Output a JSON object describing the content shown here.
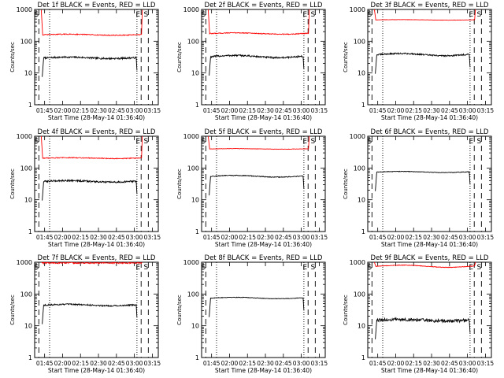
{
  "chart_data": [
    {
      "type": "line",
      "title": "Det 1f BLACK = Events, RED = LLD",
      "xlabel": "Start Time (28-May-14 01:36:40)",
      "ylabel": "Counts/sec",
      "yscale": "log",
      "ylim": [
        1,
        1000
      ],
      "xticks": [
        "01:45",
        "02:00",
        "02:15",
        "02:30",
        "02:45",
        "03:00",
        "03:15"
      ],
      "yticks": [
        "1",
        "10",
        "100",
        "1000"
      ],
      "markers": [
        "S",
        "E",
        "S"
      ],
      "series": [
        {
          "name": "Events",
          "color": "#000000",
          "baseline": 30,
          "amp": 0.05,
          "noise": 0.06
        },
        {
          "name": "LLD",
          "color": "#ff0000",
          "baseline": 160,
          "amp": 0.04,
          "noise": 0.03
        }
      ]
    },
    {
      "type": "line",
      "title": "Det 2f BLACK = Events, RED = LLD",
      "xlabel": "Start Time (28-May-14 01:36:40)",
      "ylabel": "Counts/sec",
      "yscale": "log",
      "ylim": [
        1,
        1000
      ],
      "xticks": [
        "01:45",
        "02:00",
        "02:15",
        "02:30",
        "02:45",
        "03:00",
        "03:15"
      ],
      "yticks": [
        "1",
        "10",
        "100",
        "1000"
      ],
      "markers": [
        "S",
        "E",
        "S"
      ],
      "series": [
        {
          "name": "Events",
          "color": "#000000",
          "baseline": 33,
          "amp": 0.08,
          "noise": 0.06
        },
        {
          "name": "LLD",
          "color": "#ff0000",
          "baseline": 175,
          "amp": 0.05,
          "noise": 0.03
        }
      ]
    },
    {
      "type": "line",
      "title": "Det 3f BLACK = Events, RED = LLD",
      "xlabel": "Start Time (28-May-14 01:36:40)",
      "ylabel": "Counts/sec",
      "yscale": "log",
      "ylim": [
        1,
        1000
      ],
      "xticks": [
        "01:45",
        "02:00",
        "02:15",
        "02:30",
        "02:45",
        "03:00",
        "03:15"
      ],
      "yticks": [
        "1",
        "10",
        "100",
        "1000"
      ],
      "markers": [
        "S",
        "E",
        "S"
      ],
      "series": [
        {
          "name": "Events",
          "color": "#000000",
          "baseline": 38,
          "amp": 0.08,
          "noise": 0.05
        },
        {
          "name": "LLD",
          "color": "#ff0000",
          "baseline": 470,
          "amp": 0.02,
          "noise": 0.01
        }
      ]
    },
    {
      "type": "line",
      "title": "Det 4f BLACK = Events, RED = LLD",
      "xlabel": "Start Time (28-May-14 01:36:40)",
      "ylabel": "Counts/sec",
      "yscale": "log",
      "ylim": [
        1,
        1000
      ],
      "xticks": [
        "01:45",
        "02:00",
        "02:15",
        "02:30",
        "02:45",
        "03:00",
        "03:15"
      ],
      "yticks": [
        "1",
        "10",
        "100",
        "1000"
      ],
      "markers": [
        "S",
        "E",
        "S"
      ],
      "series": [
        {
          "name": "Events",
          "color": "#000000",
          "baseline": 38,
          "amp": 0.06,
          "noise": 0.06
        },
        {
          "name": "LLD",
          "color": "#ff0000",
          "baseline": 205,
          "amp": 0.03,
          "noise": 0.03
        }
      ]
    },
    {
      "type": "line",
      "title": "Det 5f BLACK = Events, RED = LLD",
      "xlabel": "Start Time (28-May-14 01:36:40)",
      "ylabel": "Counts/sec",
      "yscale": "log",
      "ylim": [
        1,
        1000
      ],
      "xticks": [
        "01:45",
        "02:00",
        "02:15",
        "02:30",
        "02:45",
        "03:00",
        "03:15"
      ],
      "yticks": [
        "1",
        "10",
        "100",
        "1000"
      ],
      "markers": [
        "S",
        "E",
        "S"
      ],
      "series": [
        {
          "name": "Events",
          "color": "#000000",
          "baseline": 55,
          "amp": 0.06,
          "noise": 0.03
        },
        {
          "name": "LLD",
          "color": "#ff0000",
          "baseline": 400,
          "amp": 0.02,
          "noise": 0.01
        }
      ]
    },
    {
      "type": "line",
      "title": "Det 6f BLACK = Events, RED = LLD",
      "xlabel": "Start Time (28-May-14 01:36:40)",
      "ylabel": "Counts/sec",
      "yscale": "log",
      "ylim": [
        1,
        1000
      ],
      "xticks": [
        "01:45",
        "02:00",
        "02:15",
        "02:30",
        "02:45",
        "03:00",
        "03:15"
      ],
      "yticks": [
        "1",
        "10",
        "100",
        "1000"
      ],
      "markers": [
        "S",
        "E",
        "S"
      ],
      "series": [
        {
          "name": "Events",
          "color": "#000000",
          "baseline": 75,
          "amp": 0.04,
          "noise": 0.02
        }
      ]
    },
    {
      "type": "line",
      "title": "Det 7f BLACK = Events, RED = LLD",
      "xlabel": "Start Time (28-May-14 01:36:40)",
      "ylabel": "Counts/sec",
      "yscale": "log",
      "ylim": [
        1,
        1000
      ],
      "xticks": [
        "01:45",
        "02:00",
        "02:15",
        "02:30",
        "02:45",
        "03:00",
        "03:15"
      ],
      "yticks": [
        "1",
        "10",
        "100",
        "1000"
      ],
      "markers": [
        "S",
        "E",
        "S"
      ],
      "series": [
        {
          "name": "Events",
          "color": "#000000",
          "baseline": 45,
          "amp": 0.05,
          "noise": 0.05
        },
        {
          "name": "LLD",
          "color": "#ff0000",
          "baseline": 950,
          "amp": 0.0,
          "noise": 0.05
        }
      ]
    },
    {
      "type": "line",
      "title": "Det 8f BLACK = Events, RED = LLD",
      "xlabel": "Start Time (28-May-14 01:36:40)",
      "ylabel": "Counts/sec",
      "yscale": "log",
      "ylim": [
        1,
        1000
      ],
      "xticks": [
        "01:45",
        "02:00",
        "02:15",
        "02:30",
        "02:45",
        "03:00",
        "03:15"
      ],
      "yticks": [
        "1",
        "10",
        "100",
        "1000"
      ],
      "markers": [
        "S",
        "E",
        "S"
      ],
      "series": [
        {
          "name": "Events",
          "color": "#000000",
          "baseline": 75,
          "amp": 0.05,
          "noise": 0.02
        }
      ]
    },
    {
      "type": "line",
      "title": "Det 9f BLACK = Events, RED = LLD",
      "xlabel": "Start Time (28-May-14 01:36:40)",
      "ylabel": "Counts/sec",
      "yscale": "log",
      "ylim": [
        1,
        1000
      ],
      "xticks": [
        "01:45",
        "02:00",
        "02:15",
        "02:30",
        "02:45",
        "03:00",
        "03:15"
      ],
      "yticks": [
        "1",
        "10",
        "100",
        "1000"
      ],
      "markers": [
        "S",
        "E",
        "S"
      ],
      "series": [
        {
          "name": "Events",
          "color": "#000000",
          "baseline": 15,
          "amp": 0.05,
          "noise": 0.12
        },
        {
          "name": "LLD",
          "color": "#ff0000",
          "baseline": 750,
          "amp": 0.08,
          "noise": 0.02
        }
      ]
    }
  ]
}
